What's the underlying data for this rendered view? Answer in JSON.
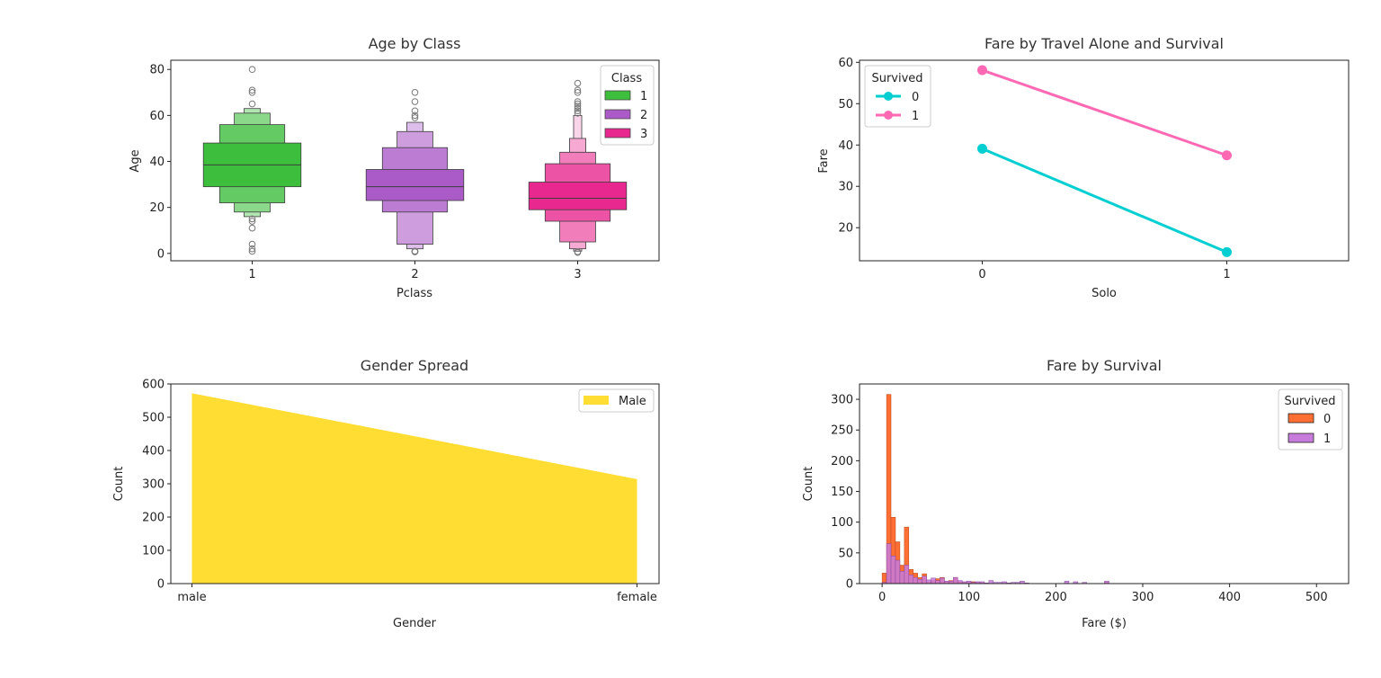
{
  "colors": {
    "class1": "#3DBE3D",
    "class2": "#AB5BC8",
    "class3": "#E8288E",
    "survived0_line": "#00CED1",
    "survived1_line": "#FF69B4",
    "gender_area": "#FFDD33",
    "hist0": "#FF6E33",
    "hist1": "#C77CDC"
  },
  "chart_data": [
    {
      "type": "boxen",
      "title": "Age by Class",
      "xlabel": "Pclass",
      "ylabel": "Age",
      "categories": [
        "1",
        "2",
        "3"
      ],
      "yticks": [
        0,
        20,
        40,
        60,
        80
      ],
      "ylim": [
        -3.2,
        84
      ],
      "legend": {
        "title": "Class",
        "position": "top-right",
        "entries": [
          "1",
          "2",
          "3"
        ]
      },
      "boxes": [
        {
          "category": "1",
          "median": 38.5,
          "levels": [
            [
              29,
              48
            ],
            [
              22,
              56
            ],
            [
              18,
              61
            ],
            [
              16,
              63
            ]
          ],
          "outliers": [
            80,
            71,
            70,
            65,
            15,
            14,
            11,
            4,
            2,
            0.92
          ]
        },
        {
          "category": "2",
          "median": 29,
          "levels": [
            [
              23,
              36.5
            ],
            [
              18,
              46
            ],
            [
              4,
              53
            ],
            [
              2,
              57
            ]
          ],
          "outliers": [
            70,
            66,
            62,
            60,
            59,
            1,
            0.83,
            0.67
          ]
        },
        {
          "category": "3",
          "median": 24,
          "levels": [
            [
              19,
              31
            ],
            [
              14,
              39
            ],
            [
              5,
              44
            ],
            [
              2,
              50
            ],
            [
              1,
              60
            ]
          ],
          "outliers": [
            74,
            71,
            70,
            66,
            65,
            64,
            63,
            62,
            61,
            0.75,
            0.42
          ]
        }
      ]
    },
    {
      "type": "line",
      "title": "Fare by Travel Alone and Survival",
      "xlabel": "Solo",
      "ylabel": "Fare",
      "categories": [
        "0",
        "1"
      ],
      "yticks": [
        20,
        30,
        40,
        50,
        60
      ],
      "ylim": [
        12,
        60.5
      ],
      "legend": {
        "title": "Survived",
        "position": "top-left"
      },
      "series": [
        {
          "name": "0",
          "values": [
            39.1,
            14.1
          ]
        },
        {
          "name": "1",
          "values": [
            58.1,
            37.5
          ]
        }
      ]
    },
    {
      "type": "area",
      "title": "Gender Spread",
      "xlabel": "Gender",
      "ylabel": "Count",
      "categories": [
        "male",
        "female"
      ],
      "values": [
        572,
        314
      ],
      "yticks": [
        0,
        100,
        200,
        300,
        400,
        500,
        600
      ],
      "ylim": [
        0,
        600
      ],
      "legend": {
        "position": "top-right",
        "entries": [
          "Male"
        ]
      }
    },
    {
      "type": "bar",
      "title": "Fare by Survival",
      "xlabel": "Fare ($)",
      "ylabel": "Count",
      "xticks": [
        0,
        100,
        200,
        300,
        400,
        500
      ],
      "yticks": [
        0,
        50,
        100,
        150,
        200,
        250,
        300
      ],
      "xlim": [
        -26,
        537
      ],
      "ylim": [
        0,
        325
      ],
      "bin_width": 5.12,
      "legend": {
        "title": "Survived",
        "position": "top-right"
      },
      "series": [
        {
          "name": "0",
          "values": [
            17,
            308,
            108,
            68,
            30,
            92,
            23,
            17,
            10,
            16,
            3,
            5,
            8,
            10,
            3,
            5,
            10,
            3,
            2,
            2,
            3,
            2,
            1,
            0,
            0,
            0,
            0,
            0,
            0,
            0,
            0,
            0,
            0,
            0,
            0,
            0,
            0,
            0,
            0,
            0,
            0,
            0,
            0,
            0,
            0,
            0,
            0,
            0,
            0,
            0,
            2
          ]
        },
        {
          "name": "1",
          "values": [
            2,
            65,
            45,
            38,
            20,
            30,
            14,
            10,
            7,
            12,
            6,
            9,
            5,
            9,
            4,
            4,
            10,
            5,
            3,
            4,
            2,
            3,
            3,
            1,
            5,
            2,
            2,
            3,
            1,
            2,
            2,
            4,
            1,
            0,
            0,
            0,
            0,
            0,
            0,
            0,
            0,
            4,
            0,
            3,
            0,
            2,
            0,
            0,
            0,
            0,
            4
          ]
        }
      ]
    }
  ]
}
